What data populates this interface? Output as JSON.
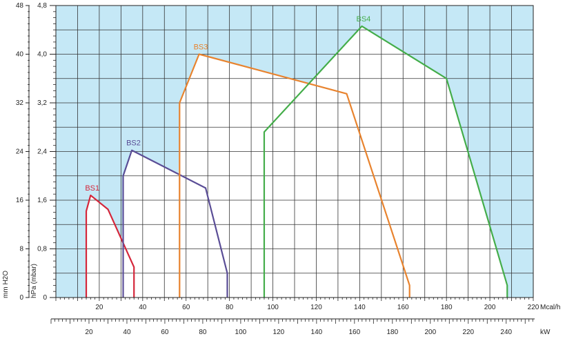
{
  "chart_data": {
    "type": "line",
    "title": "",
    "y_axis_left": {
      "label": "mm H2O",
      "ticks": [
        "0",
        "8",
        "16",
        "24",
        "32",
        "40",
        "48"
      ],
      "range": [
        0,
        48
      ]
    },
    "y_axis_inner": {
      "label": "hPa (mbar)",
      "ticks": [
        "0",
        "0,8",
        "1,6",
        "2,4",
        "3,2",
        "4,0",
        "4,8"
      ],
      "range": [
        0,
        4.8
      ]
    },
    "x_axis_top": {
      "label": "Mcal/h",
      "ticks": [
        "20",
        "40",
        "60",
        "80",
        "100",
        "120",
        "140",
        "160",
        "180",
        "200",
        "220"
      ],
      "range": [
        0,
        220
      ]
    },
    "x_axis_bottom": {
      "label": "kW",
      "ticks": [
        "20",
        "40",
        "60",
        "80",
        "100",
        "120",
        "140",
        "160",
        "180",
        "200",
        "220",
        "240"
      ]
    },
    "grid": true,
    "background_color": "#c5e8f6",
    "series": [
      {
        "name": "BS1",
        "color": "#d4263a",
        "points": [
          [
            14,
            0
          ],
          [
            14,
            1.42
          ],
          [
            16,
            1.68
          ],
          [
            24,
            1.45
          ],
          [
            36,
            0.5
          ],
          [
            36,
            0
          ]
        ]
      },
      {
        "name": "BS2",
        "color": "#5a4d96",
        "points": [
          [
            31,
            0
          ],
          [
            31,
            2.0
          ],
          [
            35,
            2.42
          ],
          [
            69,
            1.8
          ],
          [
            79,
            0.4
          ],
          [
            79,
            0
          ]
        ]
      },
      {
        "name": "BS3",
        "color": "#e8832e",
        "points": [
          [
            57,
            0
          ],
          [
            57,
            3.2
          ],
          [
            66,
            4.0
          ],
          [
            134,
            3.35
          ],
          [
            163,
            0.2
          ],
          [
            163,
            0
          ]
        ]
      },
      {
        "name": "BS4",
        "color": "#44ad4a",
        "points": [
          [
            96,
            0
          ],
          [
            96,
            2.72
          ],
          [
            141,
            4.46
          ],
          [
            180,
            3.6
          ],
          [
            208,
            0.2
          ],
          [
            208,
            0
          ]
        ]
      }
    ]
  }
}
